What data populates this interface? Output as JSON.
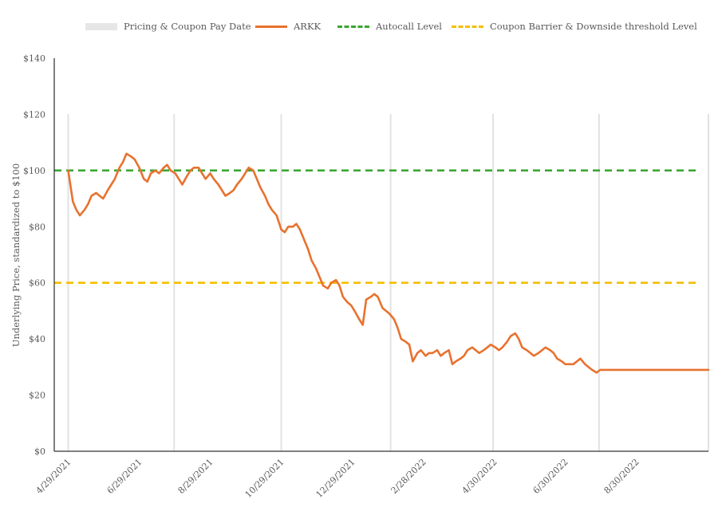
{
  "chart_data": {
    "type": "line",
    "title": "",
    "xlabel": "",
    "ylabel": "Underlying Price, standardized to $100",
    "ylim": [
      0,
      140
    ],
    "yticks": [
      0,
      20,
      40,
      60,
      80,
      100,
      120,
      140
    ],
    "ytick_labels": [
      "$0",
      "$20",
      "$40",
      "$60",
      "$80",
      "$100",
      "$120",
      "$140"
    ],
    "x_start": "4/29/2021",
    "x_end": "10/30/2022",
    "x_range_days": [
      -12,
      550
    ],
    "xtick_labels": [
      "4/29/2021",
      "6/29/2021",
      "8/29/2021",
      "10/29/2021",
      "12/29/2021",
      "2/28/2022",
      "4/30/2022",
      "6/30/2022",
      "8/30/2022"
    ],
    "xtick_days": [
      0,
      61,
      122,
      183,
      244,
      305,
      366,
      427,
      488
    ],
    "legend": {
      "band": "Pricing & Coupon Pay Date",
      "series": "ARKK",
      "autocall": "Autocall Level",
      "barrier": "Coupon Barrier & Downside threshold Level"
    },
    "pricing_coupon_dates": [
      "4/29/2021",
      "7/29/2021",
      "10/29/2021",
      "1/31/2022",
      "4/29/2022",
      "7/29/2022",
      "10/31/2022"
    ],
    "pricing_coupon_days": [
      0,
      91,
      183,
      277,
      365,
      456,
      550
    ],
    "reference_lines": [
      {
        "name": "Autocall Level",
        "value": 100,
        "color": "#3aa630"
      },
      {
        "name": "Coupon Barrier & Downside threshold Level",
        "value": 60,
        "color": "#f4bf00"
      }
    ],
    "series": [
      {
        "name": "ARKK",
        "color": "#e8722f",
        "days": [
          0,
          4,
          7,
          10,
          14,
          17,
          20,
          24,
          27,
          30,
          34,
          37,
          40,
          44,
          47,
          50,
          54,
          57,
          61,
          65,
          68,
          71,
          75,
          78,
          82,
          85,
          88,
          92,
          95,
          98,
          102,
          105,
          108,
          112,
          115,
          118,
          122,
          125,
          129,
          132,
          135,
          139,
          142,
          145,
          149,
          152,
          155,
          159,
          162,
          165,
          169,
          172,
          175,
          179,
          183,
          186,
          189,
          193,
          196,
          199,
          203,
          206,
          209,
          213,
          216,
          219,
          223,
          226,
          230,
          233,
          236,
          240,
          243,
          246,
          250,
          253,
          256,
          260,
          263,
          266,
          270,
          273,
          276,
          280,
          283,
          286,
          290,
          293,
          296,
          300,
          303,
          307,
          310,
          313,
          317,
          320,
          323,
          327,
          330,
          333,
          337,
          340,
          343,
          347,
          350,
          353,
          357,
          360,
          363,
          367,
          370,
          373,
          377,
          380,
          384,
          387,
          390,
          394,
          397,
          400,
          404,
          407,
          410,
          414,
          417,
          420,
          424,
          427,
          430,
          434,
          437,
          440,
          444,
          447,
          450,
          454,
          457,
          461,
          464,
          467,
          471,
          474,
          477,
          481,
          484,
          487,
          491,
          494,
          497,
          501,
          504,
          507,
          511,
          514,
          517,
          521,
          524,
          527,
          531,
          534,
          538,
          541,
          544,
          548,
          550
        ],
        "values": [
          100,
          89,
          86,
          84,
          86,
          88,
          91,
          92,
          91,
          90,
          93,
          95,
          97,
          101,
          103,
          106,
          105,
          104,
          101,
          97,
          96,
          99,
          100,
          99,
          101,
          102,
          100,
          99,
          97,
          95,
          98,
          100,
          101,
          101,
          99,
          97,
          99,
          97,
          95,
          93,
          91,
          92,
          93,
          95,
          97,
          99,
          101,
          100,
          97,
          94,
          91,
          88,
          86,
          84,
          79,
          78,
          80,
          80,
          81,
          79,
          75,
          72,
          68,
          65,
          62,
          59,
          58,
          60,
          61,
          59,
          55,
          53,
          52,
          50,
          47,
          45,
          54,
          55,
          56,
          55,
          51,
          50,
          49,
          47,
          44,
          40,
          39,
          38,
          32,
          35,
          36,
          34,
          35,
          35,
          36,
          34,
          35,
          36,
          31,
          32,
          33,
          34,
          36,
          37,
          36,
          35,
          36,
          37,
          38,
          37,
          36,
          37,
          39,
          41,
          42,
          40,
          37,
          36,
          35,
          34,
          35,
          36,
          37,
          36,
          35,
          33,
          32,
          31,
          31,
          31,
          32,
          33,
          31,
          30,
          29,
          28,
          29,
          29,
          29,
          29,
          29,
          29,
          29,
          29,
          29,
          29,
          29,
          29,
          29,
          29,
          29,
          29,
          29,
          29,
          29,
          29,
          29,
          29,
          29,
          29,
          29,
          29,
          29,
          29,
          29
        ]
      }
    ]
  }
}
